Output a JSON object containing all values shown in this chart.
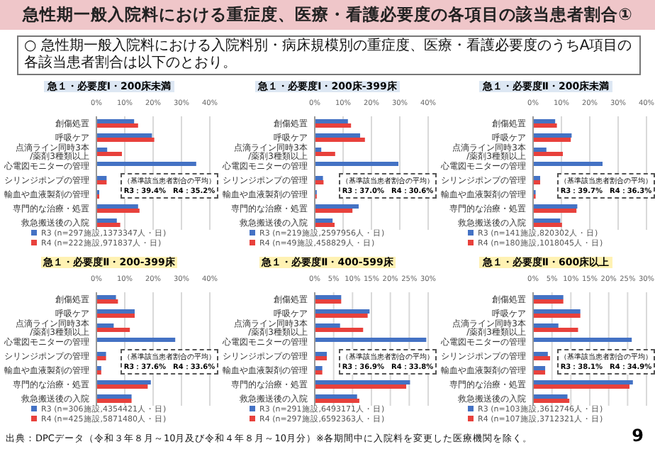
{
  "chart_data": [
    {
      "type": "bar",
      "orientation": "horizontal",
      "title": "急１・必要度Ⅰ・200床未満",
      "categories": [
        "創傷処置",
        "呼吸ケア",
        "点滴ライン同時3本/薬剤3種類以上",
        "心電図モニターの管理",
        "シリンジポンプの管理",
        "輸血や血液製剤の管理",
        "専門的な治療・処置",
        "救急搬送後の入院"
      ],
      "series": [
        {
          "name": "R3 (n=297施設,1373347人・日)",
          "color": "#4472c4",
          "values": [
            13.3,
            19.6,
            3.8,
            35.2,
            3.6,
            1.0,
            14.7,
            7.2
          ]
        },
        {
          "name": "R4 (n=222施設,971837人・日)",
          "color": "#e8413c",
          "values": [
            14.7,
            20.4,
            9.0,
            null,
            3.6,
            1.0,
            15.2,
            8.4
          ]
        }
      ],
      "xlim": [
        0,
        40
      ],
      "xticks": [
        {
          "value": 0,
          "label": "0%"
        },
        {
          "value": 10,
          "label": "10%"
        },
        {
          "value": 20,
          "label": "20%"
        },
        {
          "value": 30,
          "label": "30%"
        },
        {
          "value": 40,
          "label": "40%"
        }
      ],
      "grid": "x",
      "legend": "bottom",
      "annotations": [
        "急性期一般入院料における重症度、医療・看護必要度の各項目の該当患者割合①",
        "○ 急性期一般入院料における入院料別・病床規模別の重症度、医療・看護必要度のうちA項目の各該当患者割合は以下のとおり。",
        "出典：DPCデータ（令和３年８月～10月及び令和４年８月～10月分）※各期間中に入院料を変更した医療機関を除く。",
        "9",
        "（基準該当患者割合の平均）",
        "R3：39.4%　R4：35.2%"
      ]
    },
    {
      "type": "bar",
      "orientation": "horizontal",
      "title": "急１・必要度Ⅰ・200床-399床",
      "categories": [
        "創傷処置",
        "呼吸ケア",
        "点滴ライン同時3本/薬剤3種類以上",
        "心電図モニターの管理",
        "シリンジポンプの管理",
        "輸血や血液製剤の管理",
        "専門的な治療・処置",
        "救急搬送後の入院"
      ],
      "series": [
        {
          "name": "R3 (n=219施設,2597956人・日)",
          "color": "#4472c4",
          "values": [
            11.7,
            16.0,
            2.3,
            29.5,
            2.9,
            0.7,
            15.5,
            6.3
          ]
        },
        {
          "name": "R4 (n=49施設,458829人・日)",
          "color": "#e8413c",
          "values": [
            12.8,
            17.7,
            7.2,
            null,
            3.1,
            0.7,
            13.3,
            7.0
          ]
        }
      ],
      "xlim": [
        0,
        40
      ],
      "xticks": [
        {
          "value": 0,
          "label": "0%"
        },
        {
          "value": 10,
          "label": "10%"
        },
        {
          "value": 20,
          "label": "20%"
        },
        {
          "value": 30,
          "label": "30%"
        },
        {
          "value": 40,
          "label": "40%"
        }
      ],
      "grid": "x",
      "legend": "bottom",
      "annotations": [
        "（基準該当患者割合の平均）",
        "R3：37.0%　R4：30.6%"
      ]
    },
    {
      "type": "bar",
      "orientation": "horizontal",
      "title": "急１・必要度Ⅱ・200床未満",
      "categories": [
        "創傷処置",
        "呼吸ケア",
        "点滴ライン同時3本/薬剤3種類以上",
        "心電図モニターの管理",
        "シリンジポンプの管理",
        "輸血や血液製剤の管理",
        "専門的な治療・処置",
        "救急搬送後の入院"
      ],
      "series": [
        {
          "name": "R3 (n=141施設,820302人・日)",
          "color": "#4472c4",
          "values": [
            7.8,
            13.6,
            4.7,
            24.5,
            2.5,
            0.9,
            15.6,
            9.6
          ]
        },
        {
          "name": "R4 (n=180施設,1018045人・日)",
          "color": "#e8413c",
          "values": [
            8.4,
            13.3,
            10.5,
            null,
            2.5,
            0.9,
            15.3,
            10.2
          ]
        }
      ],
      "xlim": [
        0,
        40
      ],
      "xticks": [
        {
          "value": 0,
          "label": "0%"
        },
        {
          "value": 10,
          "label": "10%"
        },
        {
          "value": 20,
          "label": "20%"
        },
        {
          "value": 30,
          "label": "30%"
        },
        {
          "value": 40,
          "label": "40%"
        }
      ],
      "grid": "x",
      "legend": "bottom",
      "annotations": [
        "（基準該当患者割合の平均）",
        "R3：39.7%　R4：36.3%"
      ]
    },
    {
      "type": "bar",
      "orientation": "horizontal",
      "title": "急１・必要度Ⅱ・200-399床",
      "categories": [
        "創傷処置",
        "呼吸ケア",
        "点滴ライン同時3本/薬剤3種類以上",
        "心電図モニターの管理",
        "シリンジポンプの管理",
        "輸血や血液製剤の管理",
        "専門的な治療・処置",
        "救急搬送後の入院"
      ],
      "series": [
        {
          "name": "R3 (n=306施設,4354421人・日)",
          "color": "#4472c4",
          "values": [
            6.9,
            13.5,
            6.1,
            27.8,
            3.4,
            1.7,
            19.2,
            12.4
          ]
        },
        {
          "name": "R4 (n=425施設,5871480人・日)",
          "color": "#e8413c",
          "values": [
            7.6,
            13.5,
            11.8,
            null,
            3.4,
            1.7,
            18.1,
            12.4
          ]
        }
      ],
      "xlim": [
        0,
        40
      ],
      "xticks": [
        {
          "value": 0,
          "label": "0%"
        },
        {
          "value": 10,
          "label": "10%"
        },
        {
          "value": 20,
          "label": "20%"
        },
        {
          "value": 30,
          "label": "30%"
        },
        {
          "value": 40,
          "label": "40%"
        }
      ],
      "grid": "x",
      "legend": "bottom",
      "annotations": [
        "（基準該当患者割合の平均）",
        "R3：37.6%　R4：33.6%"
      ]
    },
    {
      "type": "bar",
      "orientation": "horizontal",
      "title": "急１・必要度Ⅱ・400-599床",
      "categories": [
        "創傷処置",
        "呼吸ケア",
        "点滴ライン同時3本/薬剤3種類以上",
        "心電図モニターの管理",
        "シリンジポンプの管理",
        "輸血や血液製剤の管理",
        "専門的な治療・処置",
        "救急搬送後の入院"
      ],
      "series": [
        {
          "name": "R3 (n=291施設,6493171人・日)",
          "color": "#4472c4",
          "values": [
            7.0,
            14.5,
            6.7,
            29.5,
            3.2,
            2.0,
            25.2,
            11.2
          ]
        },
        {
          "name": "R4 (n=297施設,6592363人・日)",
          "color": "#e8413c",
          "values": [
            7.0,
            14.0,
            12.8,
            null,
            3.2,
            2.0,
            24.2,
            11.8
          ]
        }
      ],
      "xlim": [
        0,
        30
      ],
      "xticks": [
        {
          "value": 0,
          "label": "0%"
        },
        {
          "value": 5,
          "label": "5%"
        },
        {
          "value": 10,
          "label": "10%"
        },
        {
          "value": 15,
          "label": "15%"
        },
        {
          "value": 20,
          "label": "20%"
        },
        {
          "value": 25,
          "label": "25%"
        },
        {
          "value": 30,
          "label": "30%"
        }
      ],
      "grid": "x",
      "legend": "bottom",
      "annotations": [
        "（基準該当患者割合の平均）",
        "R3：36.9%　R4：33.8%"
      ]
    },
    {
      "type": "bar",
      "orientation": "horizontal",
      "title": "急１・必要度Ⅱ・600床以上",
      "categories": [
        "創傷処置",
        "呼吸ケア",
        "点滴ライン同時3本/薬剤3種類以上",
        "心電図モニターの管理",
        "シリンジポンプの管理",
        "輸血や血液製剤の管理",
        "専門的な治療・処置",
        "救急搬送後の入院"
      ],
      "series": [
        {
          "name": "R3 (n=103施設,3612746人・日)",
          "color": "#4472c4",
          "values": [
            8.0,
            12.5,
            6.7,
            26.1,
            3.9,
            3.2,
            26.4,
            9.1
          ]
        },
        {
          "name": "R4 (n=107施設,3712321人・日)",
          "color": "#e8413c",
          "values": [
            8.0,
            12.5,
            11.9,
            null,
            4.5,
            3.2,
            25.5,
            9.6
          ]
        }
      ],
      "xlim": [
        0,
        30
      ],
      "xticks": [
        {
          "value": 0,
          "label": "0%"
        },
        {
          "value": 5,
          "label": "5%"
        },
        {
          "value": 10,
          "label": "10%"
        },
        {
          "value": 15,
          "label": "15%"
        },
        {
          "value": 20,
          "label": "20%"
        },
        {
          "value": 25,
          "label": "25%"
        },
        {
          "value": 30,
          "label": "30%"
        }
      ],
      "grid": "x",
      "legend": "bottom",
      "annotations": [
        "（基準該当患者割合の平均）",
        "R3：38.1%　R4：34.9%"
      ]
    }
  ]
}
